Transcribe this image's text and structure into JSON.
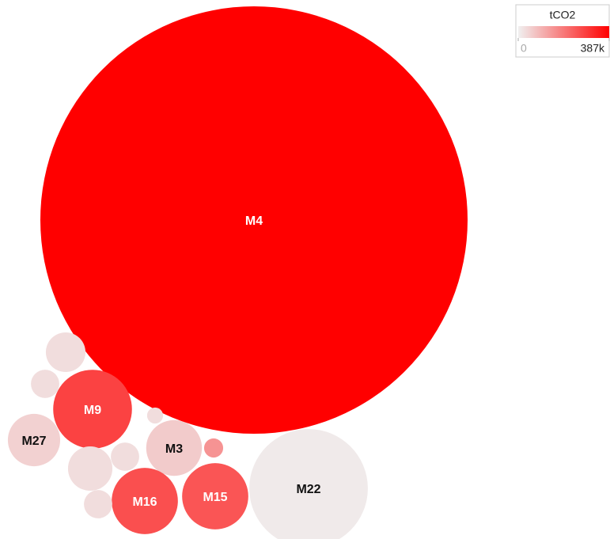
{
  "chart_data": {
    "type": "bubble",
    "names": [
      "M4",
      "M22",
      "M9",
      "M27",
      "M3",
      "M16",
      "M15",
      null,
      null,
      null,
      null,
      null,
      null,
      null
    ],
    "sizes": [
      100,
      7.7,
      3.4,
      1.5,
      1.7,
      2.4,
      2.4,
      0.86,
      0.44,
      1.08,
      0.44,
      0.44,
      0.2,
      0.14
    ],
    "values": [
      387000,
      10000,
      280000,
      50000,
      60000,
      260000,
      250000,
      30000,
      30000,
      30000,
      30000,
      30000,
      150000,
      30000
    ],
    "colorscale": [
      "#f0f0f0",
      "#ff0000"
    ],
    "legend": {
      "title": "tCO2",
      "ticks": [
        0,
        {
          "value": 387000,
          "label": "387k"
        }
      ]
    }
  }
}
